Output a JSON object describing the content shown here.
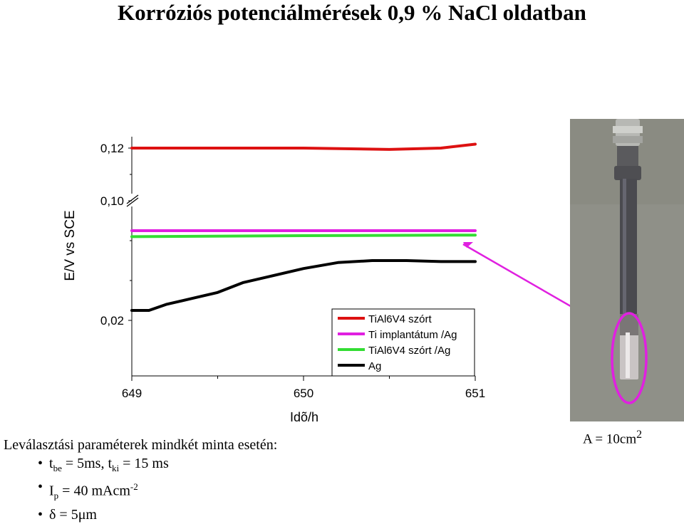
{
  "title": "Korróziós potenciálmérések 0,9 % NaCl oldatban",
  "chart_data": {
    "type": "line",
    "xlabel": "Idõ/h",
    "ylabel": "E/V vs SCE",
    "x_ticks": [
      "649",
      "650",
      "651"
    ],
    "y_ticks": [
      "0,12",
      "0,10",
      "0,02"
    ],
    "axis_break": true,
    "legend_position": "bottom-right",
    "series": [
      {
        "name": "TiAl6V4 szórt",
        "color": "#dd1111",
        "x": [
          649.0,
          649.5,
          650.0,
          650.5,
          650.8,
          651.0
        ],
        "y": [
          0.12,
          0.12,
          0.12,
          0.1195,
          0.12,
          0.1215
        ]
      },
      {
        "name": "Ti implantátum /Ag",
        "color": "#e020e0",
        "x": [
          649.0,
          650.0,
          651.0
        ],
        "y": [
          0.065,
          0.065,
          0.065
        ]
      },
      {
        "name": "TiAl6V4 szórt /Ag",
        "color": "#33dd33",
        "x": [
          649.0,
          650.0,
          651.0
        ],
        "y": [
          0.062,
          0.0625,
          0.0628
        ]
      },
      {
        "name": "Ag",
        "color": "#000000",
        "x": [
          649.0,
          649.1,
          649.2,
          649.35,
          649.5,
          649.65,
          649.8,
          650.0,
          650.2,
          650.4,
          650.6,
          650.8,
          651.0
        ],
        "y": [
          0.025,
          0.025,
          0.028,
          0.031,
          0.034,
          0.039,
          0.042,
          0.046,
          0.049,
          0.05,
          0.05,
          0.0495,
          0.0495
        ]
      }
    ]
  },
  "photo": {
    "area_text": "A = 10cm",
    "area_sup": "2",
    "highlight_color": "#e020e0"
  },
  "params": {
    "heading": "Leválasztási paraméterek mindkét minta esetén:",
    "line1": {
      "t": "t",
      "sub1": "be",
      "mid": " = 5ms,  t",
      "sub2": "ki",
      "end": " = 15 ms"
    },
    "line2": {
      "t": "I",
      "sub": "p",
      "mid": " = 40 mAcm",
      "sup": "-2"
    },
    "line3": {
      "text": "δ = 5μm"
    }
  }
}
